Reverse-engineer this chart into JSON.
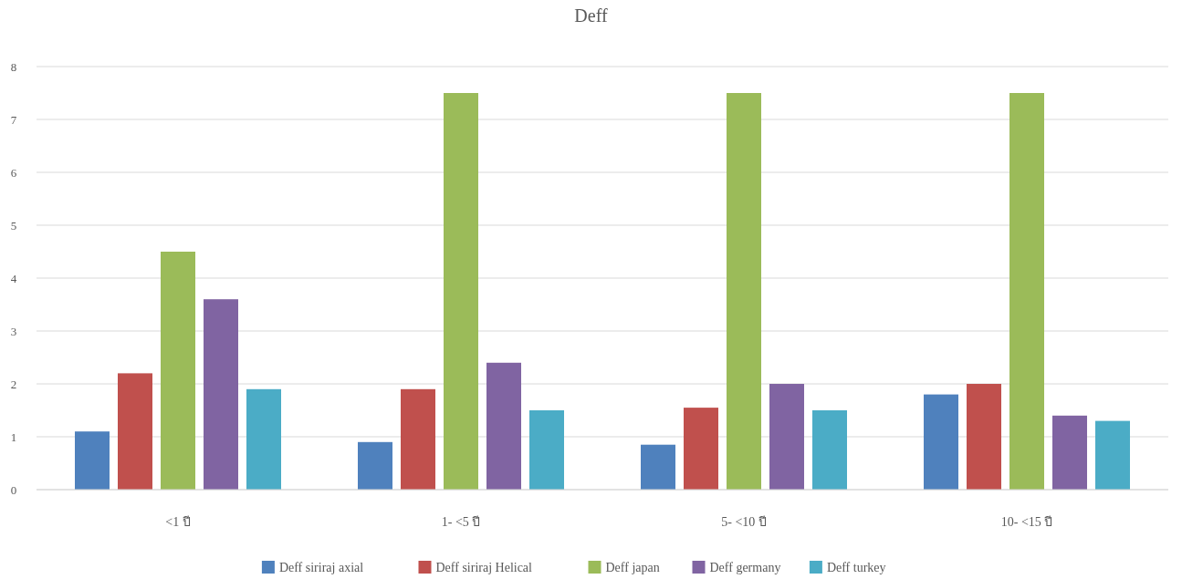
{
  "chart_data": {
    "type": "bar",
    "title": "Deff",
    "categories": [
      "<1 ปี",
      "1- <5 ปี",
      "5- <10 ปี",
      "10- <15 ปี"
    ],
    "series": [
      {
        "name": "Deff siriraj axial",
        "color": "#4f81bd",
        "values": [
          1.1,
          0.9,
          0.85,
          1.8
        ]
      },
      {
        "name": "Deff siriraj Helical",
        "color": "#c0504d",
        "values": [
          2.2,
          1.9,
          1.55,
          2.0
        ]
      },
      {
        "name": "Deff japan",
        "color": "#9bbb59",
        "values": [
          4.5,
          7.5,
          7.5,
          7.5
        ]
      },
      {
        "name": "Deff germany",
        "color": "#8064a2",
        "values": [
          3.6,
          2.4,
          2.0,
          1.4
        ]
      },
      {
        "name": "Deff turkey",
        "color": "#4bacc6",
        "values": [
          1.9,
          1.5,
          1.5,
          1.3
        ]
      }
    ],
    "ylim": [
      0,
      8
    ],
    "yticks": [
      0,
      1,
      2,
      3,
      4,
      5,
      6,
      7,
      8
    ],
    "grid": "y",
    "legend": "bottom"
  }
}
